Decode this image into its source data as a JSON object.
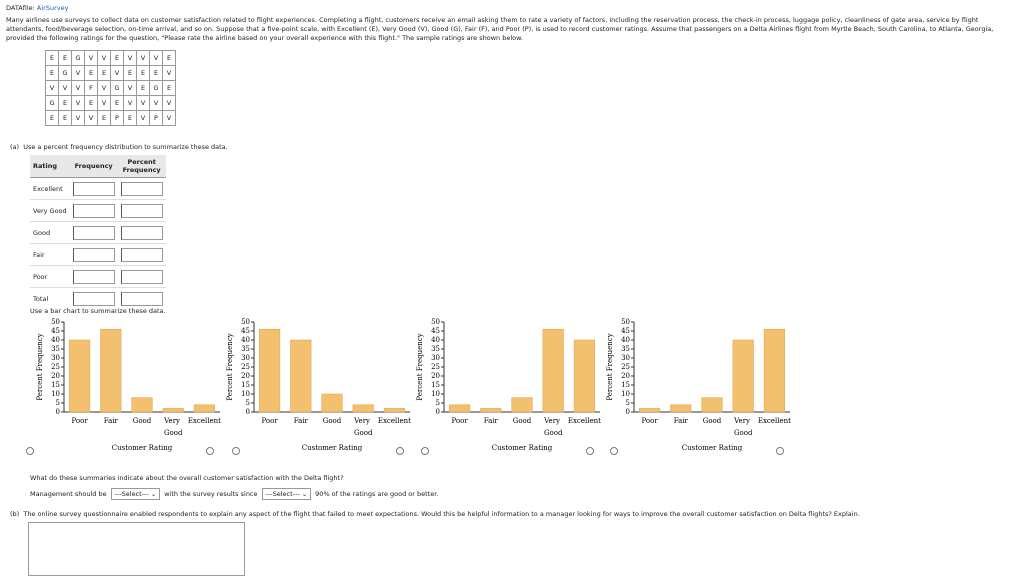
{
  "header": {
    "datafile_label": "DATAfile:",
    "datafile": "AirSurvey"
  },
  "intro": "Many airlines use surveys to collect data on customer satisfaction related to flight experiences. Completing a flight, customers receive an email asking them to rate a variety of factors, including the reservation process, the check-in process, luggage policy, cleanliness of gate area, service by flight attendants, food/beverage selection, on-time arrival, and so on. Suppose that a five-point scale, with Excellent (E), Very Good (V), Good (G), Fair (F), and Poor (P), is used to record customer ratings. Assume that passengers on a Delta Airlines flight from Myrtle Beach, South Carolina, to Atlanta, Georgia, provided the following ratings for the question, \"Please rate the airline based on your overall experience with this flight.\" The sample ratings are shown below.",
  "grid": [
    [
      "E",
      "E",
      "G",
      "V",
      "V",
      "E",
      "V",
      "V",
      "V",
      "E"
    ],
    [
      "E",
      "G",
      "V",
      "E",
      "E",
      "V",
      "E",
      "E",
      "E",
      "V"
    ],
    [
      "V",
      "V",
      "V",
      "F",
      "V",
      "G",
      "V",
      "E",
      "G",
      "E"
    ],
    [
      "G",
      "E",
      "V",
      "E",
      "V",
      "E",
      "V",
      "V",
      "V",
      "V"
    ],
    [
      "E",
      "E",
      "V",
      "V",
      "E",
      "P",
      "E",
      "V",
      "P",
      "V"
    ]
  ],
  "part_a": {
    "label": "(a)",
    "text": "Use a percent frequency distribution to summarize these data."
  },
  "table": {
    "headers": [
      "Rating",
      "Frequency",
      "Percent Frequency"
    ],
    "rows": [
      "Excellent",
      "Very Good",
      "Good",
      "Fair",
      "Poor",
      "Total"
    ]
  },
  "bar_prompt": "Use a bar chart to summarize these data.",
  "chart_data": [
    {
      "type": "bar",
      "y_label": "Percent Frequency",
      "x_label": "Customer Rating",
      "categories": [
        "Poor",
        "Fair",
        "Good",
        "Very Good",
        "Excellent"
      ],
      "values": [
        40,
        46,
        8,
        2,
        4
      ],
      "color": "#f2c06e",
      "ylim": [
        0,
        50
      ],
      "yticks": [
        0,
        5,
        10,
        15,
        20,
        25,
        30,
        35,
        40,
        45,
        50
      ]
    },
    {
      "type": "bar",
      "y_label": "Percent Frequency",
      "x_label": "Customer Rating",
      "categories": [
        "Poor",
        "Fair",
        "Good",
        "Very Good",
        "Excellent"
      ],
      "values": [
        46,
        40,
        10,
        4,
        2
      ],
      "color": "#f2c06e",
      "ylim": [
        0,
        50
      ],
      "yticks": [
        0,
        5,
        10,
        15,
        20,
        25,
        30,
        35,
        40,
        45,
        50
      ]
    },
    {
      "type": "bar",
      "y_label": "Percent Frequency",
      "x_label": "Customer Rating",
      "categories": [
        "Poor",
        "Fair",
        "Good",
        "Very Good",
        "Excellent"
      ],
      "values": [
        4,
        2,
        8,
        46,
        40
      ],
      "color": "#f2c06e",
      "ylim": [
        0,
        50
      ],
      "yticks": [
        0,
        5,
        10,
        15,
        20,
        25,
        30,
        35,
        40,
        45,
        50
      ]
    },
    {
      "type": "bar",
      "y_label": "Percent Frequency",
      "x_label": "Customer Rating",
      "categories": [
        "Poor",
        "Fair",
        "Good",
        "Very Good",
        "Excellent"
      ],
      "values": [
        2,
        4,
        8,
        40,
        46
      ],
      "color": "#f2c06e",
      "ylim": [
        0,
        50
      ],
      "yticks": [
        0,
        5,
        10,
        15,
        20,
        25,
        30,
        35,
        40,
        45,
        50
      ]
    }
  ],
  "question": "What do these summaries indicate about the overall customer satisfaction with the Delta flight?",
  "sentence": {
    "before": "Management should be",
    "select1": "---Select---",
    "middle": "with the survey results since",
    "select2": "---Select---",
    "after": "90% of the ratings are good or better."
  },
  "part_b": {
    "label": "(b)",
    "text": "The online survey questionnaire enabled respondents to explain any aspect of the flight that failed to meet expectations. Would this be helpful information to a manager looking for ways to improve the overall customer satisfaction on Delta flights? Explain."
  }
}
